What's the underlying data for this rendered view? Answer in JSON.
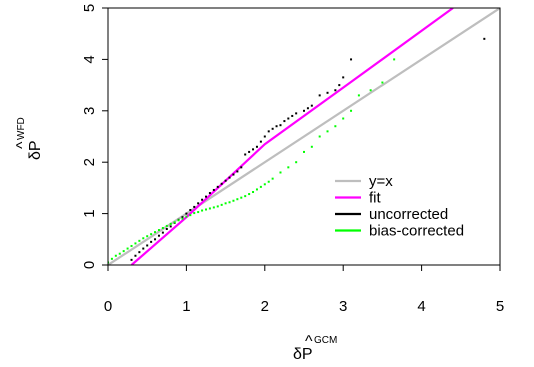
{
  "chart_data": {
    "type": "scatter",
    "title": "",
    "xlabel": {
      "base": "δP",
      "hat": "^",
      "sup": "GCM"
    },
    "ylabel": {
      "base": "δP",
      "hat": "^",
      "sup": "WFD"
    },
    "xlim": [
      0,
      5
    ],
    "ylim": [
      0,
      5
    ],
    "xticks": [
      "0",
      "1",
      "2",
      "3",
      "4",
      "5"
    ],
    "yticks": [
      "0",
      "1",
      "2",
      "3",
      "4",
      "5"
    ],
    "grid": false,
    "legend_position": "center-right",
    "lines": [
      {
        "name": "y=x",
        "color": "#bebebe",
        "x": [
          0,
          5
        ],
        "y": [
          0,
          5
        ]
      },
      {
        "name": "fit",
        "color": "#ff00ff",
        "x": [
          0.3,
          1.0,
          2.0,
          3.0,
          4.4
        ],
        "y": [
          0.0,
          0.93,
          2.35,
          3.45,
          5.0
        ]
      }
    ],
    "series": [
      {
        "name": "uncorrected",
        "color": "#000000",
        "x": [
          0.3,
          0.35,
          0.4,
          0.45,
          0.5,
          0.55,
          0.6,
          0.65,
          0.7,
          0.75,
          0.8,
          0.85,
          0.9,
          0.95,
          1.0,
          1.05,
          1.1,
          1.15,
          1.2,
          1.25,
          1.3,
          1.35,
          1.4,
          1.45,
          1.5,
          1.55,
          1.6,
          1.65,
          1.7,
          1.75,
          1.8,
          1.85,
          1.9,
          1.95,
          2.0,
          2.05,
          2.1,
          2.15,
          2.2,
          2.25,
          2.3,
          2.35,
          2.4,
          2.5,
          2.55,
          2.6,
          2.7,
          2.8,
          2.9,
          2.95,
          3.0,
          3.1,
          4.8
        ],
        "y": [
          0.1,
          0.18,
          0.25,
          0.32,
          0.38,
          0.45,
          0.5,
          0.57,
          0.63,
          0.7,
          0.75,
          0.82,
          0.88,
          0.93,
          1.0,
          1.07,
          1.13,
          1.2,
          1.27,
          1.33,
          1.4,
          1.46,
          1.52,
          1.58,
          1.64,
          1.7,
          1.76,
          1.82,
          1.9,
          2.15,
          2.2,
          2.25,
          2.3,
          2.4,
          2.5,
          2.6,
          2.65,
          2.7,
          2.72,
          2.8,
          2.85,
          2.9,
          2.95,
          3.0,
          3.05,
          3.1,
          3.3,
          3.35,
          3.4,
          3.5,
          3.65,
          4.0,
          4.4
        ]
      },
      {
        "name": "bias-corrected",
        "color": "#00ff00",
        "x": [
          0.0,
          0.05,
          0.1,
          0.15,
          0.2,
          0.25,
          0.3,
          0.35,
          0.4,
          0.45,
          0.5,
          0.55,
          0.6,
          0.65,
          0.7,
          0.75,
          0.8,
          0.85,
          0.9,
          0.95,
          1.0,
          1.05,
          1.1,
          1.15,
          1.2,
          1.25,
          1.3,
          1.35,
          1.4,
          1.45,
          1.5,
          1.55,
          1.6,
          1.65,
          1.7,
          1.75,
          1.8,
          1.85,
          1.9,
          1.95,
          2.0,
          2.05,
          2.1,
          2.2,
          2.3,
          2.4,
          2.5,
          2.6,
          2.7,
          2.8,
          2.9,
          3.0,
          3.1,
          3.2,
          3.35,
          3.5,
          3.65
        ],
        "y": [
          0.05,
          0.12,
          0.18,
          0.22,
          0.27,
          0.32,
          0.37,
          0.42,
          0.47,
          0.52,
          0.56,
          0.6,
          0.64,
          0.68,
          0.72,
          0.76,
          0.8,
          0.83,
          0.87,
          0.9,
          0.94,
          0.97,
          1.01,
          1.03,
          1.06,
          1.08,
          1.1,
          1.12,
          1.14,
          1.17,
          1.2,
          1.22,
          1.25,
          1.28,
          1.31,
          1.34,
          1.38,
          1.42,
          1.47,
          1.52,
          1.57,
          1.62,
          1.68,
          1.8,
          1.9,
          2.0,
          2.2,
          2.3,
          2.5,
          2.6,
          2.7,
          2.85,
          3.0,
          3.3,
          3.4,
          3.55,
          4.0
        ]
      }
    ],
    "legend": [
      {
        "label": "y=x",
        "color": "#bebebe"
      },
      {
        "label": "fit",
        "color": "#ff00ff"
      },
      {
        "label": "uncorrected",
        "color": "#000000"
      },
      {
        "label": "bias-corrected",
        "color": "#00ff00"
      }
    ]
  }
}
